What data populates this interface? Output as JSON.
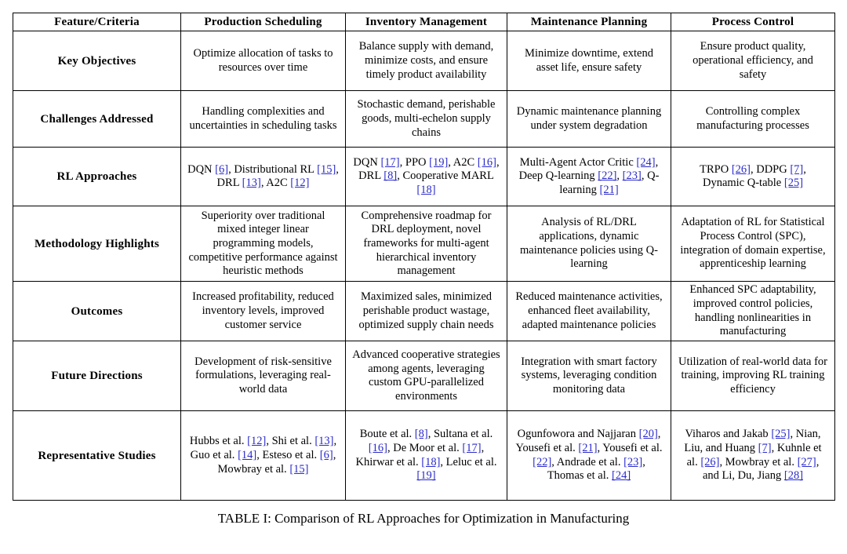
{
  "caption": "TABLE I: Comparison of RL Approaches for Optimization in Manufacturing",
  "colors": {
    "link": "#2b2bcb",
    "border": "#000000",
    "text": "#000000",
    "background": "#ffffff"
  },
  "table": {
    "columns": [
      "Feature/Criteria",
      "Production Scheduling",
      "Inventory Management",
      "Maintenance Planning",
      "Process Control"
    ],
    "rows": [
      {
        "feature": "Key Objectives",
        "cells": [
          [
            {
              "t": "Optimize allocation of tasks to resources over time"
            }
          ],
          [
            {
              "t": "Balance supply with demand, minimize costs, and ensure timely product availability"
            }
          ],
          [
            {
              "t": "Minimize downtime, extend asset life, ensure safety"
            }
          ],
          [
            {
              "t": "Ensure product quality, operational efficiency, and safety"
            }
          ]
        ]
      },
      {
        "feature": "Challenges Addressed",
        "cells": [
          [
            {
              "t": "Handling complexities and uncertainties in scheduling tasks"
            }
          ],
          [
            {
              "t": "Stochastic demand, perishable goods, multi-echelon supply chains"
            }
          ],
          [
            {
              "t": "Dynamic maintenance planning under system degradation"
            }
          ],
          [
            {
              "t": "Controlling complex manufacturing processes"
            }
          ]
        ]
      },
      {
        "feature": "RL Approaches",
        "cells": [
          [
            {
              "t": "DQN "
            },
            {
              "c": "[6]"
            },
            {
              "t": ", Distributional RL "
            },
            {
              "c": "[15]"
            },
            {
              "t": ", DRL "
            },
            {
              "c": "[13]"
            },
            {
              "t": ", A2C "
            },
            {
              "c": "[12]"
            }
          ],
          [
            {
              "t": "DQN "
            },
            {
              "c": "[17]"
            },
            {
              "t": ", PPO "
            },
            {
              "c": "[19]"
            },
            {
              "t": ", A2C "
            },
            {
              "c": "[16]"
            },
            {
              "t": ", DRL "
            },
            {
              "c": "[8]"
            },
            {
              "t": ", Cooperative MARL "
            },
            {
              "c": "[18]"
            }
          ],
          [
            {
              "t": "Multi-Agent Actor Critic "
            },
            {
              "c": "[24]"
            },
            {
              "t": ", Deep Q-learning "
            },
            {
              "c": "[22]"
            },
            {
              "t": ", "
            },
            {
              "c": "[23]"
            },
            {
              "t": ", Q-learning "
            },
            {
              "c": "[21]"
            }
          ],
          [
            {
              "t": "TRPO "
            },
            {
              "c": "[26]"
            },
            {
              "t": ", DDPG "
            },
            {
              "c": "[7]"
            },
            {
              "t": ", Dynamic Q-table "
            },
            {
              "c": "[25]"
            }
          ]
        ]
      },
      {
        "feature": "Methodology Highlights",
        "cells": [
          [
            {
              "t": "Superiority over traditional mixed integer linear programming models, competitive performance against heuristic methods"
            }
          ],
          [
            {
              "t": "Comprehensive roadmap for DRL deployment, novel frameworks for multi-agent hierarchical inventory management"
            }
          ],
          [
            {
              "t": "Analysis of RL/DRL applications, dynamic maintenance policies using Q-learning"
            }
          ],
          [
            {
              "t": "Adaptation of RL for Statistical Process Control (SPC), integration of domain expertise, apprenticeship learning"
            }
          ]
        ]
      },
      {
        "feature": "Outcomes",
        "cells": [
          [
            {
              "t": "Increased profitability, reduced inventory levels, improved customer service"
            }
          ],
          [
            {
              "t": "Maximized sales, minimized perishable product wastage, optimized supply chain needs"
            }
          ],
          [
            {
              "t": "Reduced maintenance activities, enhanced fleet availability, adapted maintenance policies"
            }
          ],
          [
            {
              "t": "Enhanced SPC adaptability, improved control policies, handling nonlinearities in manufacturing"
            }
          ]
        ]
      },
      {
        "feature": "Future Directions",
        "cells": [
          [
            {
              "t": "Development of risk-sensitive formulations, leveraging real-world data"
            }
          ],
          [
            {
              "t": "Advanced cooperative strategies among agents, leveraging custom GPU-parallelized environments"
            }
          ],
          [
            {
              "t": "Integration with smart factory systems, leveraging condition monitoring data"
            }
          ],
          [
            {
              "t": "Utilization of real-world data for training, improving RL training efficiency"
            }
          ]
        ]
      },
      {
        "feature": "Representative Studies",
        "cells": [
          [
            {
              "t": "Hubbs et al. "
            },
            {
              "c": "[12]"
            },
            {
              "t": ", Shi et al. "
            },
            {
              "c": "[13]"
            },
            {
              "t": ", Guo et al. "
            },
            {
              "c": "[14]"
            },
            {
              "t": ", Esteso et al. "
            },
            {
              "c": "[6]"
            },
            {
              "t": ", Mowbray et al. "
            },
            {
              "c": "[15]"
            }
          ],
          [
            {
              "t": "Boute et al. "
            },
            {
              "c": "[8]"
            },
            {
              "t": ", Sultana et al. "
            },
            {
              "c": "[16]"
            },
            {
              "t": ", De Moor et al. "
            },
            {
              "c": "[17]"
            },
            {
              "t": ", Khirwar et al. "
            },
            {
              "c": "[18]"
            },
            {
              "t": ", Leluc et al. "
            },
            {
              "c": "[19]"
            }
          ],
          [
            {
              "t": "Ogunfowora and Najjaran "
            },
            {
              "c": "[20]"
            },
            {
              "t": ", Yousefi et al. "
            },
            {
              "c": "[21]"
            },
            {
              "t": ", Yousefi et al. "
            },
            {
              "c": "[22]"
            },
            {
              "t": ", Andrade et al. "
            },
            {
              "c": "[23]"
            },
            {
              "t": ", Thomas et al. "
            },
            {
              "c": "[24]"
            }
          ],
          [
            {
              "t": "Viharos and Jakab "
            },
            {
              "c": "[25]"
            },
            {
              "t": ", Nian, Liu, and Huang "
            },
            {
              "c": "[7]"
            },
            {
              "t": ", Kuhnle et al. "
            },
            {
              "c": "[26]"
            },
            {
              "t": ", Mowbray et al. "
            },
            {
              "c": "[27]"
            },
            {
              "t": ", and Li, Du, Jiang "
            },
            {
              "c": "[28]"
            }
          ]
        ]
      }
    ]
  }
}
